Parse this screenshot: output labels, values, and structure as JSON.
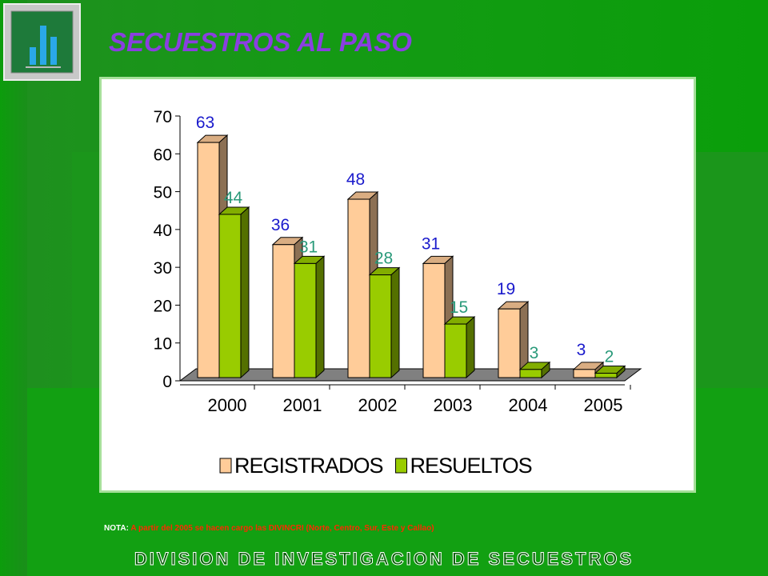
{
  "chart_data": {
    "type": "bar3d",
    "title": "SECUESTROS AL PASO",
    "categories": [
      "2000",
      "2001",
      "2002",
      "2003",
      "2004",
      "2005"
    ],
    "series": [
      {
        "name": "REGISTRADOS",
        "color": "#ffcc99",
        "label_color": "#1a1acc",
        "values": [
          63,
          36,
          48,
          31,
          19,
          3
        ]
      },
      {
        "name": "RESUELTOS",
        "color": "#99cc00",
        "label_color": "#2a9a7a",
        "values": [
          44,
          31,
          28,
          15,
          3,
          2
        ]
      }
    ],
    "ylim": [
      0,
      70
    ],
    "yticks": [
      0,
      10,
      20,
      30,
      40,
      50,
      60,
      70
    ],
    "legend": "bottom"
  },
  "note": {
    "label": "NOTA:",
    "text": "A partir del 2005 se hacen cargo las DIVINCRI (Norte, Centro, Sur, Este y Callao)"
  },
  "footer": "DIVISION DE INVESTIGACION DE SECUESTROS"
}
